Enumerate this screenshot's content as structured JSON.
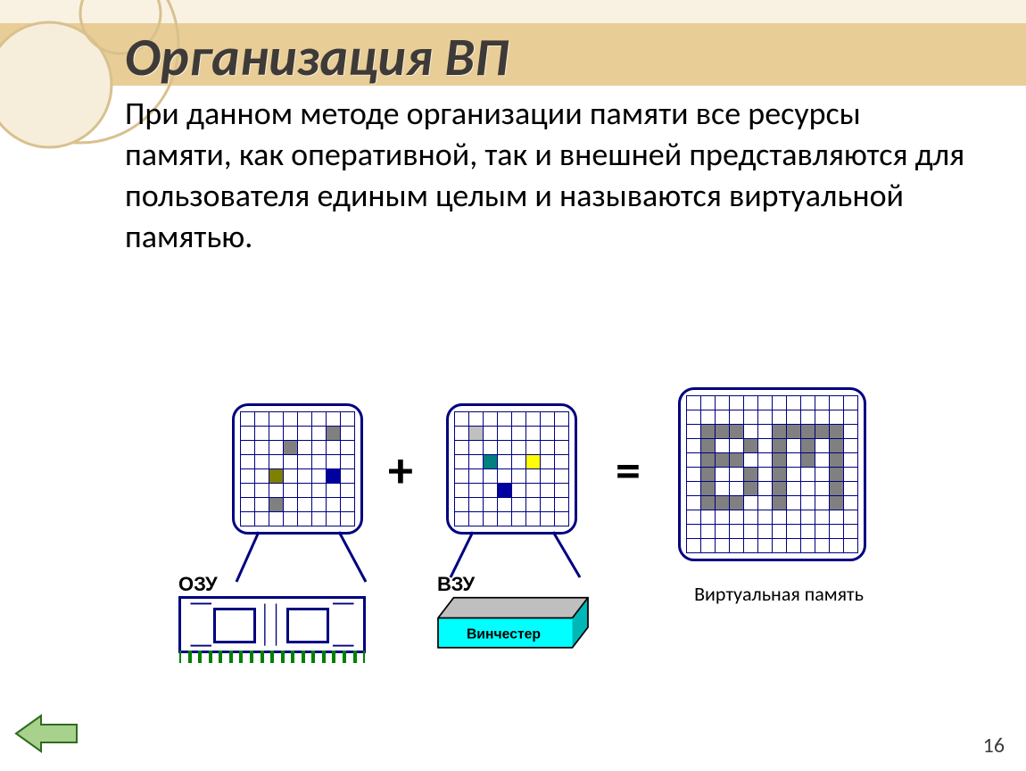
{
  "colors": {
    "band_top": "#f9f2e3",
    "band_mid": "#e8cd96",
    "circle_stroke": "#d8c18e",
    "circle_fill": "#f6eedb",
    "title_color": "#3e3a37",
    "grid_border": "#000080",
    "ram_pin": "#008000",
    "hdd_top": "#bfbfbf",
    "hdd_front": "#00ffff",
    "hdd_side": "#00b7b7",
    "nav_fill": "#a7d18c",
    "nav_stroke": "#2e6b1f"
  },
  "title": "Организация ВП",
  "body": "При данном методе организации памяти все ресурсы памяти, как оперативной, так и внешней представляются для пользователя единым целым  и называются виртуальной памятью.",
  "labels": {
    "ozu": "ОЗУ",
    "vzu": "ВЗУ",
    "hdd": "Винчестер",
    "vm": "Виртуальная память",
    "plus": "+",
    "equals": "="
  },
  "page_number": "16",
  "grids": {
    "ozu": {
      "rows": 8,
      "cols": 8,
      "cell": 16,
      "filled": [
        {
          "r": 1,
          "c": 6,
          "color": "#808080"
        },
        {
          "r": 2,
          "c": 3,
          "color": "#808080"
        },
        {
          "r": 4,
          "c": 2,
          "color": "#808000"
        },
        {
          "r": 4,
          "c": 6,
          "color": "#0000a0"
        },
        {
          "r": 6,
          "c": 2,
          "color": "#808080"
        }
      ]
    },
    "vzu": {
      "rows": 8,
      "cols": 8,
      "cell": 16,
      "filled": [
        {
          "r": 1,
          "c": 1,
          "color": "#c0c0c0"
        },
        {
          "r": 3,
          "c": 2,
          "color": "#008080"
        },
        {
          "r": 3,
          "c": 5,
          "color": "#ffff00"
        },
        {
          "r": 5,
          "c": 3,
          "color": "#0000a0"
        }
      ]
    },
    "vm": {
      "rows": 11,
      "cols": 12,
      "cell": 16,
      "filled": [
        {
          "r": 2,
          "c": 1,
          "color": "#808080"
        },
        {
          "r": 2,
          "c": 2,
          "color": "#808080"
        },
        {
          "r": 2,
          "c": 3,
          "color": "#808080"
        },
        {
          "r": 3,
          "c": 1,
          "color": "#808080"
        },
        {
          "r": 3,
          "c": 4,
          "color": "#808080"
        },
        {
          "r": 4,
          "c": 1,
          "color": "#808080"
        },
        {
          "r": 4,
          "c": 2,
          "color": "#808080"
        },
        {
          "r": 4,
          "c": 3,
          "color": "#808080"
        },
        {
          "r": 5,
          "c": 1,
          "color": "#808080"
        },
        {
          "r": 5,
          "c": 4,
          "color": "#808080"
        },
        {
          "r": 6,
          "c": 1,
          "color": "#808080"
        },
        {
          "r": 6,
          "c": 4,
          "color": "#808080"
        },
        {
          "r": 7,
          "c": 1,
          "color": "#808080"
        },
        {
          "r": 7,
          "c": 2,
          "color": "#808080"
        },
        {
          "r": 7,
          "c": 3,
          "color": "#808080"
        },
        {
          "r": 2,
          "c": 6,
          "color": "#808080"
        },
        {
          "r": 2,
          "c": 7,
          "color": "#808080"
        },
        {
          "r": 2,
          "c": 8,
          "color": "#808080"
        },
        {
          "r": 2,
          "c": 9,
          "color": "#808080"
        },
        {
          "r": 2,
          "c": 10,
          "color": "#808080"
        },
        {
          "r": 3,
          "c": 6,
          "color": "#808080"
        },
        {
          "r": 3,
          "c": 8,
          "color": "#808080"
        },
        {
          "r": 3,
          "c": 10,
          "color": "#808080"
        },
        {
          "r": 4,
          "c": 6,
          "color": "#808080"
        },
        {
          "r": 4,
          "c": 8,
          "color": "#808080"
        },
        {
          "r": 4,
          "c": 10,
          "color": "#808080"
        },
        {
          "r": 5,
          "c": 6,
          "color": "#808080"
        },
        {
          "r": 5,
          "c": 10,
          "color": "#808080"
        },
        {
          "r": 6,
          "c": 6,
          "color": "#808080"
        },
        {
          "r": 6,
          "c": 10,
          "color": "#808080"
        },
        {
          "r": 7,
          "c": 6,
          "color": "#808080"
        },
        {
          "r": 7,
          "c": 10,
          "color": "#808080"
        }
      ]
    }
  }
}
